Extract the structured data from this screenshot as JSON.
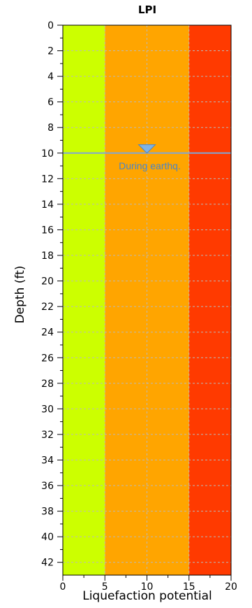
{
  "chart_data": {
    "type": "area",
    "title": "LPI",
    "xlabel": "Liquefaction potential",
    "ylabel": "Depth (ft)",
    "xlim": [
      0,
      20
    ],
    "ylim": [
      0,
      43
    ],
    "y_inverted": true,
    "x_major_ticks": [
      0,
      5,
      10,
      15,
      20
    ],
    "x_minor_ticks": [
      2.5,
      7.5,
      12.5,
      17.5
    ],
    "y_major_ticks": [
      0,
      2,
      4,
      6,
      8,
      10,
      12,
      14,
      16,
      18,
      20,
      22,
      24,
      26,
      28,
      30,
      32,
      34,
      36,
      38,
      40,
      42
    ],
    "y_minor_ticks": [
      1,
      3,
      5,
      7,
      9,
      11,
      13,
      15,
      17,
      19,
      21,
      23,
      25,
      27,
      29,
      31,
      33,
      35,
      37,
      39,
      41
    ],
    "grid": true,
    "bands": [
      {
        "from": 0,
        "to": 5,
        "color": "#ccff00"
      },
      {
        "from": 5,
        "to": 15,
        "color": "#ffa500"
      },
      {
        "from": 15,
        "to": 20,
        "color": "#ff3a00"
      }
    ],
    "water_table": {
      "depth": 10,
      "marker_x": 10,
      "label": "During earthq.",
      "color": "#7fa7d8"
    }
  }
}
